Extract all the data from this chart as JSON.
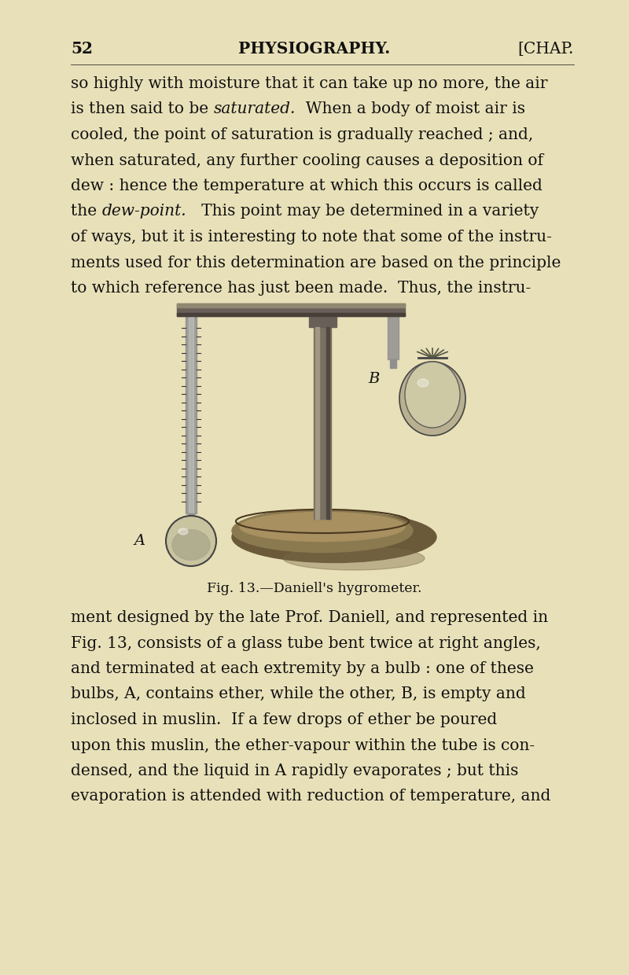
{
  "bg_color": "#E8E0B8",
  "page_number": "52",
  "header_center": "PHYSIOGRAPHY.",
  "header_right": "[CHAP.",
  "body_lines": [
    "so highly with moisture that it can take up no more, the air",
    "is then said to be |saturated.|  When a body of moist air is",
    "cooled, the point of saturation is gradually reached ; and,",
    "when saturated, any further cooling causes a deposition of",
    "dew : hence the temperature at which this occurs is called",
    "the |dew-point.|   This point may be determined in a variety",
    "of ways, but it is interesting to note that some of the instru-",
    "ments used for this determination are based on the principle",
    "to which reference has just been made.  Thus, the instru-"
  ],
  "bottom_lines": [
    "ment designed by the late Prof. Daniell, and represented in",
    "Fig. 13, consists of a glass tube bent twice at right angles,",
    "and terminated at each extremity by a bulb : one of these",
    "bulbs, A, contains ether, while the other, B, is empty and",
    "inclosed in muslin.  If a few drops of ether be poured",
    "upon this muslin, the ether-vapour within the tube is con-",
    "densed, and the liquid in A rapidly evaporates ; but this",
    "evaporation is attended with reduction of temperature, and"
  ],
  "caption": "Fig. 13.—Daniell's hygrometer.",
  "text_color": "#111111",
  "fig_bg": "#E8E0B8",
  "font_size_body": 14.5,
  "font_size_header": 14.5,
  "font_size_caption": 12.5
}
